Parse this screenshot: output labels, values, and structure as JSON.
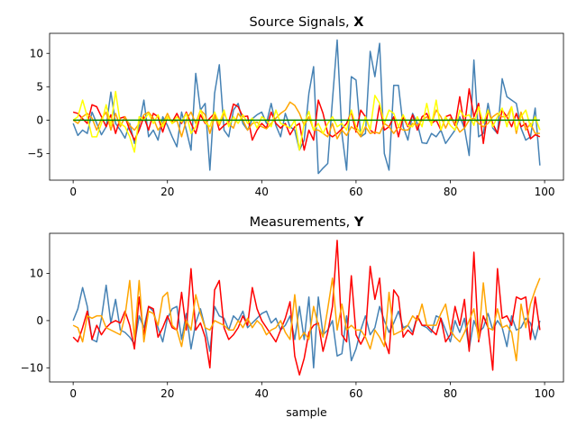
{
  "colors": {
    "steelblue": "#4682b4",
    "red": "#ff0000",
    "orange": "#ffa500",
    "yellow": "#ffff00",
    "green": "#008000"
  },
  "chart_data": [
    {
      "type": "line",
      "title_prefix": "Source Signals, ",
      "title_bold": "X",
      "xlabel": "",
      "ylabel": "",
      "xlim": [
        -5,
        104
      ],
      "ylim": [
        -9,
        13
      ],
      "xticks": [
        0,
        20,
        40,
        60,
        80,
        100
      ],
      "yticks": [
        -5,
        0,
        5,
        10
      ],
      "x": [
        0,
        1,
        2,
        3,
        4,
        5,
        6,
        7,
        8,
        9,
        10,
        11,
        12,
        13,
        14,
        15,
        16,
        17,
        18,
        19,
        20,
        21,
        22,
        23,
        24,
        25,
        26,
        27,
        28,
        29,
        30,
        31,
        32,
        33,
        34,
        35,
        36,
        37,
        38,
        39,
        40,
        41,
        42,
        43,
        44,
        45,
        46,
        47,
        48,
        49,
        50,
        51,
        52,
        53,
        54,
        55,
        56,
        57,
        58,
        59,
        60,
        61,
        62,
        63,
        64,
        65,
        66,
        67,
        68,
        69,
        70,
        71,
        72,
        73,
        74,
        75,
        76,
        77,
        78,
        79,
        80,
        81,
        82,
        83,
        84,
        85,
        86,
        87,
        88,
        89,
        90,
        91,
        92,
        93,
        94,
        95,
        96,
        97,
        98,
        99
      ],
      "series": [
        {
          "color": "#4682b4",
          "values": [
            -0.5,
            -2.3,
            -1.5,
            -2.0,
            1.2,
            -0.5,
            -2.2,
            -1.0,
            4.2,
            -0.5,
            -1.5,
            -2.7,
            -0.5,
            -3.5,
            -0.8,
            3.0,
            -2.5,
            -1.5,
            -3.0,
            0.5,
            -0.8,
            -2.5,
            -4.0,
            1.2,
            -1.5,
            -4.5,
            7.0,
            1.5,
            2.5,
            -7.5,
            4.0,
            8.3,
            -1.5,
            -2.5,
            1.5,
            2.5,
            -0.5,
            -1.5,
            0.2,
            0.8,
            1.2,
            -0.5,
            2.5,
            -0.8,
            -2.5,
            1.0,
            -1.0,
            -1.5,
            -4.5,
            -3.0,
            4.0,
            8.0,
            -8.0,
            -7.2,
            -6.5,
            3.0,
            12.0,
            -2.0,
            -7.5,
            6.5,
            6.0,
            -2.5,
            -2.0,
            10.3,
            6.5,
            11.5,
            -5.0,
            -7.5,
            5.2,
            5.2,
            -1.0,
            -3.0,
            1.0,
            -0.5,
            -3.4,
            -3.5,
            -2.0,
            -2.5,
            -1.5,
            -3.5,
            -2.5,
            -1.5,
            0.5,
            -1.2,
            -5.3,
            9.0,
            -2.5,
            -2.0,
            2.5,
            -1.2,
            -2.0,
            6.2,
            3.5,
            3.0,
            2.5,
            -1.2,
            -3.0,
            -2.5,
            1.8,
            -6.8
          ]
        },
        {
          "color": "#ff0000",
          "values": [
            1.2,
            1.0,
            0.2,
            -0.5,
            2.3,
            2.0,
            0.5,
            -1.0,
            0.8,
            -2.0,
            0.3,
            0.5,
            -1.5,
            -3.0,
            -1.5,
            0.5,
            -1.5,
            1.0,
            0.5,
            -1.8,
            0.5,
            -0.3,
            1.0,
            -0.5,
            1.2,
            -0.5,
            -2.0,
            0.8,
            -0.5,
            0.3,
            1.0,
            -1.5,
            -0.8,
            -0.3,
            2.4,
            2.0,
            0.5,
            0.6,
            -3.0,
            -1.5,
            -0.5,
            -1.2,
            1.2,
            -0.5,
            -1.2,
            -0.5,
            -2.2,
            -1.0,
            -0.5,
            -4.5,
            -1.5,
            -3.0,
            3.0,
            1.0,
            -2.0,
            -2.5,
            -2.0,
            -1.3,
            -0.5,
            1.2,
            -1.8,
            1.5,
            0.5,
            -1.5,
            -2.0,
            2.3,
            -1.5,
            -1.0,
            0.5,
            -2.5,
            0.5,
            -1.0,
            0.8,
            -1.5,
            0.5,
            1.0,
            -0.5,
            0.0,
            -1.5,
            0.5,
            0.8,
            -0.8,
            3.5,
            -1.0,
            4.7,
            0.5,
            2.5,
            -3.5,
            1.5,
            -0.5,
            -2.0,
            1.5,
            0.5,
            -1.0,
            1.0,
            -1.0,
            -0.5,
            -2.8,
            -2.2,
            -2.5
          ]
        },
        {
          "color": "#ffa500",
          "values": [
            0.0,
            -0.5,
            0.5,
            1.0,
            0.3,
            -1.5,
            0.2,
            1.2,
            -1.5,
            1.0,
            -1.0,
            0.5,
            -0.8,
            -1.5,
            -0.5,
            0.8,
            1.2,
            0.3,
            -1.5,
            -0.5,
            1.0,
            -0.5,
            0.0,
            -2.5,
            0.0,
            1.2,
            -0.5,
            1.5,
            0.8,
            -2.0,
            0.5,
            -0.8,
            1.0,
            -0.5,
            -1.2,
            1.0,
            0.0,
            -1.5,
            -0.5,
            -0.3,
            -1.0,
            -1.3,
            -0.5,
            0.3,
            1.0,
            1.5,
            2.7,
            2.2,
            1.0,
            -0.8,
            0.5,
            -1.5,
            -1.5,
            -2.0,
            -2.5,
            -0.5,
            -2.8,
            -1.5,
            -2.3,
            -1.0,
            -1.5,
            -2.5,
            -1.0,
            -2.0,
            -1.8,
            -2.0,
            -0.5,
            -1.0,
            -2.0,
            -1.0,
            -1.5,
            -1.5,
            -0.5,
            -0.8,
            0.0,
            0.5,
            -0.5,
            1.5,
            0.5,
            -1.2,
            0.3,
            -0.5,
            -1.8,
            -1.2,
            0.0,
            0.3,
            -0.5,
            -1.0,
            -0.5,
            0.5,
            1.0,
            0.5,
            0.5,
            2.0,
            -2.0,
            1.2,
            -1.5,
            -0.5,
            -2.0,
            -2.0
          ]
        },
        {
          "color": "#ffff00",
          "values": [
            0.0,
            0.5,
            3.0,
            0.5,
            -2.5,
            -2.5,
            -0.5,
            2.3,
            -0.8,
            4.3,
            -0.5,
            -1.0,
            -2.5,
            -4.8,
            0.5,
            0.0,
            1.0,
            -0.5,
            0.8,
            -1.0,
            0.5,
            -0.5,
            0.5,
            -0.3,
            1.0,
            -2.0,
            -1.0,
            1.5,
            -0.3,
            -1.0,
            1.2,
            -0.5,
            1.5,
            -1.0,
            0.5,
            -0.5,
            0.8,
            -0.5,
            0.3,
            -1.2,
            0.5,
            0.0,
            -1.0,
            1.5,
            -0.5,
            -0.8,
            -1.2,
            0.0,
            -4.5,
            -0.5,
            1.3,
            -1.5,
            -0.5,
            -2.0,
            -0.5,
            0.5,
            -1.0,
            -0.5,
            -1.5,
            1.5,
            -1.0,
            -2.0,
            0.5,
            -1.5,
            3.7,
            2.5,
            -0.5,
            1.5,
            1.0,
            -1.0,
            0.8,
            -0.8,
            -1.0,
            0.5,
            -1.0,
            2.5,
            -0.8,
            3.0,
            -1.5,
            0.5,
            -0.8,
            -1.5,
            1.5,
            0.5,
            0.8,
            -0.8,
            2.0,
            -0.5,
            1.5,
            -1.0,
            0.5,
            1.8,
            -1.0,
            2.0,
            -1.5,
            0.5,
            1.5,
            -1.0,
            0.5,
            -1.5
          ]
        },
        {
          "color": "#008000",
          "values": [
            0,
            0,
            0,
            0,
            0,
            0,
            0,
            0,
            0,
            0,
            0,
            0,
            0,
            0,
            0,
            0,
            0,
            0,
            0,
            0,
            0,
            0,
            0,
            0,
            0,
            0,
            0,
            0,
            0,
            0,
            0,
            0,
            0,
            0,
            0,
            0,
            0,
            0,
            0,
            0,
            0,
            0,
            0,
            0,
            0,
            0,
            0,
            0,
            0,
            0,
            0,
            0,
            0,
            0,
            0,
            0,
            0,
            0,
            0,
            0,
            0,
            0,
            0,
            0,
            0,
            0,
            0,
            0,
            0,
            0,
            0,
            0,
            0,
            0,
            0,
            0,
            0,
            0,
            0,
            0,
            0,
            0,
            0,
            0,
            0,
            0,
            0,
            0,
            0,
            0,
            0,
            0,
            0,
            0,
            0,
            0,
            0,
            0,
            0,
            0
          ]
        }
      ]
    },
    {
      "type": "line",
      "title_prefix": "Measurements, ",
      "title_bold": "Y",
      "xlabel": "sample",
      "ylabel": "",
      "xlim": [
        -5,
        104
      ],
      "ylim": [
        -13,
        18.5
      ],
      "xticks": [
        0,
        20,
        40,
        60,
        80,
        100
      ],
      "yticks": [
        -10,
        0,
        10
      ],
      "x": [
        0,
        1,
        2,
        3,
        4,
        5,
        6,
        7,
        8,
        9,
        10,
        11,
        12,
        13,
        14,
        15,
        16,
        17,
        18,
        19,
        20,
        21,
        22,
        23,
        24,
        25,
        26,
        27,
        28,
        29,
        30,
        31,
        32,
        33,
        34,
        35,
        36,
        37,
        38,
        39,
        40,
        41,
        42,
        43,
        44,
        45,
        46,
        47,
        48,
        49,
        50,
        51,
        52,
        53,
        54,
        55,
        56,
        57,
        58,
        59,
        60,
        61,
        62,
        63,
        64,
        65,
        66,
        67,
        68,
        69,
        70,
        71,
        72,
        73,
        74,
        75,
        76,
        77,
        78,
        79,
        80,
        81,
        82,
        83,
        84,
        85,
        86,
        87,
        88,
        89,
        90,
        91,
        92,
        93,
        94,
        95,
        96,
        97,
        98,
        99
      ],
      "series": [
        {
          "color": "#4682b4",
          "values": [
            0.0,
            2.5,
            7.0,
            3.0,
            -4.0,
            -4.5,
            0.5,
            7.5,
            -0.5,
            4.5,
            -2.0,
            -2.5,
            -3.5,
            -5.0,
            1.0,
            -1.5,
            3.0,
            2.0,
            -1.5,
            -4.5,
            0.5,
            2.5,
            3.0,
            -4.0,
            1.5,
            -6.0,
            -0.5,
            2.5,
            -1.5,
            -6.5,
            3.0,
            1.0,
            0.5,
            -2.0,
            1.0,
            0.0,
            2.0,
            -1.5,
            -0.5,
            0.5,
            1.5,
            2.0,
            -0.5,
            0.5,
            -2.0,
            -1.0,
            1.0,
            -4.0,
            3.0,
            -4.0,
            5.0,
            -10.0,
            5.0,
            -3.0,
            -2.0,
            0.0,
            -7.5,
            -7.0,
            1.0,
            -8.5,
            -6.0,
            -2.0,
            1.0,
            -3.0,
            -1.5,
            3.0,
            0.0,
            -2.5,
            -0.5,
            2.0,
            -1.5,
            -1.0,
            -2.5,
            1.0,
            -1.0,
            -1.5,
            -2.5,
            1.0,
            0.5,
            -2.0,
            -4.5,
            0.0,
            -2.5,
            0.5,
            -6.0,
            0.0,
            -2.5,
            -1.5,
            1.5,
            -2.0,
            0.0,
            -1.5,
            -5.5,
            1.0,
            -2.0,
            -1.5,
            0.5,
            -0.5,
            -4.0,
            0.0
          ]
        },
        {
          "color": "#ff0000",
          "values": [
            -3.5,
            -4.5,
            -1.5,
            2.0,
            -4.0,
            -1.0,
            -3.0,
            -1.5,
            -0.5,
            0.0,
            -0.5,
            2.0,
            -1.0,
            -6.0,
            5.0,
            -3.0,
            3.0,
            2.5,
            -3.5,
            -1.5,
            1.0,
            -1.5,
            -2.0,
            6.0,
            -2.0,
            11.0,
            -2.0,
            -0.5,
            -3.5,
            -10.0,
            6.5,
            8.5,
            -1.5,
            -4.0,
            -3.0,
            -1.5,
            1.0,
            -1.0,
            7.0,
            2.5,
            0.0,
            -1.5,
            -3.0,
            -4.5,
            -2.0,
            0.5,
            4.0,
            -7.5,
            -11.5,
            -8.0,
            -2.5,
            -1.0,
            -0.5,
            -6.5,
            -2.5,
            3.0,
            17.0,
            -3.0,
            -4.5,
            9.5,
            -3.0,
            -5.0,
            -3.0,
            11.5,
            4.5,
            9.0,
            -4.0,
            -7.0,
            6.5,
            5.0,
            -3.5,
            -2.0,
            -3.0,
            1.0,
            -1.0,
            -1.0,
            -2.0,
            -3.0,
            0.5,
            -4.5,
            -3.0,
            3.0,
            -1.0,
            4.5,
            -6.5,
            14.5,
            -4.5,
            1.0,
            -1.5,
            -10.5,
            11.0,
            0.5,
            1.0,
            -1.0,
            5.0,
            4.5,
            5.0,
            -4.0,
            5.0,
            -2.0
          ]
        },
        {
          "color": "#ffa500",
          "values": [
            -1.0,
            -1.5,
            -4.5,
            1.0,
            0.5,
            1.0,
            1.0,
            -1.5,
            -2.0,
            -2.5,
            -3.0,
            1.0,
            8.5,
            -4.0,
            8.5,
            -4.5,
            2.0,
            1.5,
            -1.0,
            5.0,
            6.0,
            -1.0,
            -2.0,
            -5.5,
            0.0,
            -2.0,
            5.5,
            1.5,
            -1.5,
            -2.0,
            0.0,
            -0.5,
            -1.0,
            -2.0,
            -2.0,
            0.0,
            -1.5,
            0.5,
            -1.5,
            0.0,
            -1.0,
            -3.0,
            -2.0,
            -1.5,
            0.0,
            -2.5,
            -4.0,
            5.5,
            -4.0,
            -2.5,
            -4.0,
            3.0,
            -1.0,
            -3.5,
            2.5,
            9.0,
            -2.0,
            3.5,
            -2.0,
            -1.0,
            -2.0,
            -2.0,
            -3.5,
            -6.0,
            -2.0,
            -3.5,
            -5.5,
            6.0,
            -3.0,
            -2.5,
            -2.0,
            -1.0,
            1.0,
            0.0,
            3.5,
            -1.0,
            -1.0,
            -1.0,
            1.5,
            3.5,
            -2.0,
            -3.5,
            -4.5,
            -2.5,
            0.0,
            2.5,
            -4.0,
            8.0,
            -1.5,
            -2.0,
            2.5,
            -1.5,
            -1.0,
            -2.5,
            -8.5,
            3.5,
            -1.5,
            3.5,
            6.5,
            9.0
          ]
        }
      ]
    }
  ]
}
